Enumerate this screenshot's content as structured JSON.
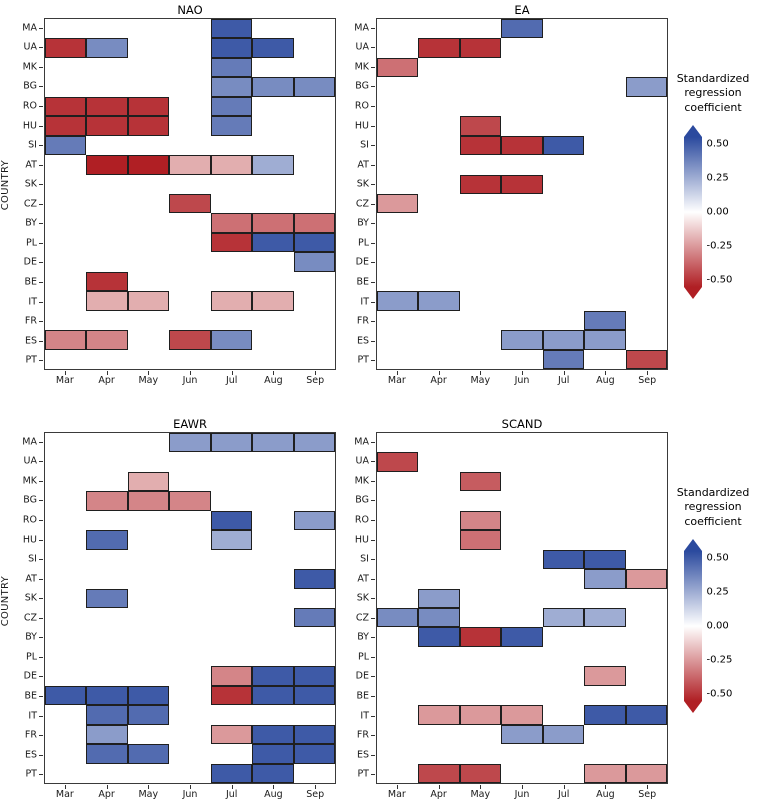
{
  "figure": {
    "background": "#ffffff"
  },
  "axis": {
    "y_label": "COUNTRY"
  },
  "legend": {
    "title": "Standardized regression coefficient",
    "ticks": [
      0.5,
      0.25,
      0.0,
      -0.25,
      -0.5
    ],
    "range": [
      -0.55,
      0.55
    ],
    "color_high": "#2b4a9e",
    "color_mid": "#ffffff",
    "color_low": "#b01f24"
  },
  "chart_data": [
    {
      "type": "heatmap",
      "title": "NAO",
      "xlabel": "",
      "ylabel": "COUNTRY",
      "x": [
        "Mar",
        "Apr",
        "May",
        "Jun",
        "Jul",
        "Aug",
        "Sep"
      ],
      "y": [
        "MA",
        "UA",
        "MK",
        "BG",
        "RO",
        "HU",
        "SI",
        "AT",
        "SK",
        "CZ",
        "BY",
        "PL",
        "DE",
        "BE",
        "IT",
        "FR",
        "ES",
        "PT"
      ],
      "cells": [
        [
          "MA",
          "Jul",
          0.5
        ],
        [
          "UA",
          "Mar",
          -0.5
        ],
        [
          "UA",
          "Apr",
          0.35
        ],
        [
          "UA",
          "Jul",
          0.5
        ],
        [
          "UA",
          "Aug",
          0.5
        ],
        [
          "MK",
          "Jul",
          0.4
        ],
        [
          "BG",
          "Jul",
          0.35
        ],
        [
          "BG",
          "Aug",
          0.35
        ],
        [
          "BG",
          "Sep",
          0.35
        ],
        [
          "RO",
          "Mar",
          -0.5
        ],
        [
          "RO",
          "Apr",
          -0.5
        ],
        [
          "RO",
          "May",
          -0.5
        ],
        [
          "RO",
          "Jul",
          0.4
        ],
        [
          "HU",
          "Mar",
          -0.5
        ],
        [
          "HU",
          "Apr",
          -0.5
        ],
        [
          "HU",
          "May",
          -0.5
        ],
        [
          "HU",
          "Jul",
          0.4
        ],
        [
          "SI",
          "Mar",
          0.4
        ],
        [
          "AT",
          "Apr",
          -0.55
        ],
        [
          "AT",
          "May",
          -0.55
        ],
        [
          "AT",
          "Jun",
          -0.2
        ],
        [
          "AT",
          "Jul",
          -0.2
        ],
        [
          "AT",
          "Aug",
          0.25
        ],
        [
          "CZ",
          "Jun",
          -0.45
        ],
        [
          "BY",
          "Jul",
          -0.35
        ],
        [
          "BY",
          "Aug",
          -0.35
        ],
        [
          "BY",
          "Sep",
          -0.35
        ],
        [
          "PL",
          "Jul",
          -0.5
        ],
        [
          "PL",
          "Aug",
          0.5
        ],
        [
          "PL",
          "Sep",
          0.5
        ],
        [
          "DE",
          "Sep",
          0.35
        ],
        [
          "BE",
          "Apr",
          -0.5
        ],
        [
          "IT",
          "Apr",
          -0.2
        ],
        [
          "IT",
          "May",
          -0.2
        ],
        [
          "IT",
          "Jul",
          -0.2
        ],
        [
          "IT",
          "Aug",
          -0.2
        ],
        [
          "ES",
          "Mar",
          -0.3
        ],
        [
          "ES",
          "Apr",
          -0.3
        ],
        [
          "ES",
          "Jun",
          -0.45
        ],
        [
          "ES",
          "Jul",
          0.35
        ]
      ]
    },
    {
      "type": "heatmap",
      "title": "EA",
      "xlabel": "",
      "ylabel": "COUNTRY",
      "x": [
        "Mar",
        "Apr",
        "May",
        "Jun",
        "Jul",
        "Aug",
        "Sep"
      ],
      "y": [
        "MA",
        "UA",
        "MK",
        "BG",
        "RO",
        "HU",
        "SI",
        "AT",
        "SK",
        "CZ",
        "BY",
        "PL",
        "DE",
        "BE",
        "IT",
        "FR",
        "ES",
        "PT"
      ],
      "cells": [
        [
          "MA",
          "Jun",
          0.45
        ],
        [
          "UA",
          "Apr",
          -0.5
        ],
        [
          "UA",
          "May",
          -0.5
        ],
        [
          "MK",
          "Mar",
          -0.35
        ],
        [
          "BG",
          "Sep",
          0.3
        ],
        [
          "HU",
          "May",
          -0.45
        ],
        [
          "SI",
          "May",
          -0.5
        ],
        [
          "SI",
          "Jun",
          -0.5
        ],
        [
          "SI",
          "Jul",
          0.5
        ],
        [
          "SK",
          "May",
          -0.5
        ],
        [
          "SK",
          "Jun",
          -0.5
        ],
        [
          "CZ",
          "Mar",
          -0.25
        ],
        [
          "IT",
          "Mar",
          0.3
        ],
        [
          "IT",
          "Apr",
          0.3
        ],
        [
          "FR",
          "Aug",
          0.4
        ],
        [
          "ES",
          "Jun",
          0.3
        ],
        [
          "ES",
          "Jul",
          0.3
        ],
        [
          "ES",
          "Aug",
          0.3
        ],
        [
          "PT",
          "Jul",
          0.4
        ],
        [
          "PT",
          "Sep",
          -0.45
        ]
      ]
    },
    {
      "type": "heatmap",
      "title": "EAWR",
      "xlabel": "",
      "ylabel": "COUNTRY",
      "x": [
        "Mar",
        "Apr",
        "May",
        "Jun",
        "Jul",
        "Aug",
        "Sep"
      ],
      "y": [
        "MA",
        "UA",
        "MK",
        "BG",
        "RO",
        "HU",
        "SI",
        "AT",
        "SK",
        "CZ",
        "BY",
        "PL",
        "DE",
        "BE",
        "IT",
        "FR",
        "ES",
        "PT"
      ],
      "cells": [
        [
          "MA",
          "Jun",
          0.3
        ],
        [
          "MA",
          "Jul",
          0.3
        ],
        [
          "MA",
          "Aug",
          0.3
        ],
        [
          "MA",
          "Sep",
          0.3
        ],
        [
          "MK",
          "May",
          -0.2
        ],
        [
          "BG",
          "Apr",
          -0.3
        ],
        [
          "BG",
          "May",
          -0.3
        ],
        [
          "BG",
          "Jun",
          -0.3
        ],
        [
          "RO",
          "Jul",
          0.5
        ],
        [
          "RO",
          "Sep",
          0.3
        ],
        [
          "HU",
          "Apr",
          0.45
        ],
        [
          "HU",
          "Jul",
          0.25
        ],
        [
          "AT",
          "Sep",
          0.5
        ],
        [
          "SK",
          "Apr",
          0.4
        ],
        [
          "CZ",
          "Sep",
          0.4
        ],
        [
          "DE",
          "Jul",
          -0.3
        ],
        [
          "DE",
          "Aug",
          0.5
        ],
        [
          "DE",
          "Sep",
          0.5
        ],
        [
          "BE",
          "Mar",
          0.5
        ],
        [
          "BE",
          "Apr",
          0.5
        ],
        [
          "BE",
          "May",
          0.5
        ],
        [
          "BE",
          "Jul",
          -0.5
        ],
        [
          "BE",
          "Aug",
          0.5
        ],
        [
          "BE",
          "Sep",
          0.5
        ],
        [
          "IT",
          "Apr",
          0.45
        ],
        [
          "IT",
          "May",
          0.45
        ],
        [
          "FR",
          "Apr",
          0.3
        ],
        [
          "FR",
          "Jul",
          -0.25
        ],
        [
          "FR",
          "Aug",
          0.5
        ],
        [
          "FR",
          "Sep",
          0.5
        ],
        [
          "ES",
          "Apr",
          0.45
        ],
        [
          "ES",
          "May",
          0.45
        ],
        [
          "ES",
          "Aug",
          0.5
        ],
        [
          "ES",
          "Sep",
          0.5
        ],
        [
          "PT",
          "Jul",
          0.5
        ],
        [
          "PT",
          "Aug",
          0.5
        ]
      ]
    },
    {
      "type": "heatmap",
      "title": "SCAND",
      "xlabel": "",
      "ylabel": "COUNTRY",
      "x": [
        "Mar",
        "Apr",
        "May",
        "Jun",
        "Jul",
        "Aug",
        "Sep"
      ],
      "y": [
        "MA",
        "UA",
        "MK",
        "BG",
        "RO",
        "HU",
        "SI",
        "AT",
        "SK",
        "CZ",
        "BY",
        "PL",
        "DE",
        "BE",
        "IT",
        "FR",
        "ES",
        "PT"
      ],
      "cells": [
        [
          "UA",
          "Mar",
          -0.45
        ],
        [
          "MK",
          "May",
          -0.4
        ],
        [
          "RO",
          "May",
          -0.3
        ],
        [
          "HU",
          "May",
          -0.35
        ],
        [
          "SI",
          "Jul",
          0.5
        ],
        [
          "SI",
          "Aug",
          0.5
        ],
        [
          "AT",
          "Aug",
          0.3
        ],
        [
          "AT",
          "Sep",
          -0.25
        ],
        [
          "SK",
          "Apr",
          0.3
        ],
        [
          "CZ",
          "Mar",
          0.35
        ],
        [
          "CZ",
          "Apr",
          0.35
        ],
        [
          "CZ",
          "Jul",
          0.25
        ],
        [
          "CZ",
          "Aug",
          0.25
        ],
        [
          "BY",
          "Apr",
          0.5
        ],
        [
          "BY",
          "May",
          -0.5
        ],
        [
          "BY",
          "Jun",
          0.5
        ],
        [
          "DE",
          "Aug",
          -0.25
        ],
        [
          "IT",
          "Apr",
          -0.25
        ],
        [
          "IT",
          "May",
          -0.25
        ],
        [
          "IT",
          "Jun",
          -0.25
        ],
        [
          "IT",
          "Aug",
          0.5
        ],
        [
          "IT",
          "Sep",
          0.5
        ],
        [
          "FR",
          "Jun",
          0.3
        ],
        [
          "FR",
          "Jul",
          0.3
        ],
        [
          "PT",
          "Apr",
          -0.45
        ],
        [
          "PT",
          "May",
          -0.45
        ],
        [
          "PT",
          "Aug",
          -0.25
        ],
        [
          "PT",
          "Sep",
          -0.25
        ]
      ]
    }
  ]
}
